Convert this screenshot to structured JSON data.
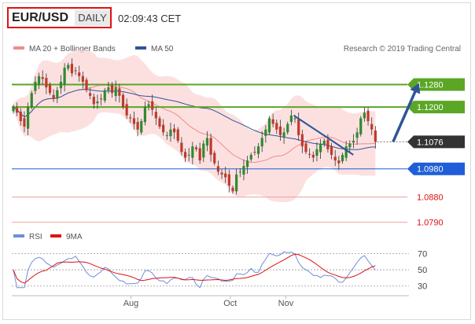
{
  "header": {
    "symbol": "EUR/USD",
    "timeframe": "DAILY",
    "time": "02:09:43 CET"
  },
  "legend_top": [
    {
      "label": "MA 20 + Bollinger Bands",
      "color": "#f08c8c"
    },
    {
      "label": "MA 50",
      "color": "#2f5597"
    }
  ],
  "copyright": "Research © 2019 Trading Central",
  "legend_bottom": [
    {
      "label": "RSI",
      "color": "#6d8fd8"
    },
    {
      "label": "9MA",
      "color": "#e01010"
    }
  ],
  "chart_data": [
    {
      "type": "candlestick",
      "ylim": [
        1.0775,
        1.1385
      ],
      "xlim": [
        0,
        100
      ],
      "x_ticks": [
        {
          "label": "Aug",
          "x": 30
        },
        {
          "label": "Oct",
          "x": 55
        },
        {
          "label": "Nov",
          "x": 69
        }
      ],
      "levels": [
        {
          "label": "1.1280",
          "value": 1.128,
          "color": "#5ba624",
          "kind": "resistance"
        },
        {
          "label": "1.1200",
          "value": 1.12,
          "color": "#5ba624",
          "kind": "resistance"
        },
        {
          "label": "1.1076",
          "value": 1.1076,
          "color": "#333333",
          "kind": "last-price"
        },
        {
          "label": "1.0980",
          "value": 1.098,
          "color": "#1f5ed8",
          "kind": "pivot"
        },
        {
          "label": "1.0880",
          "value": 1.088,
          "color": "#f0a0a0",
          "kind": "support"
        },
        {
          "label": "1.0790",
          "value": 1.079,
          "color": "#f0a0a0",
          "kind": "support"
        }
      ],
      "close": [
        1.12,
        1.118,
        1.115,
        1.113,
        1.12,
        1.125,
        1.129,
        1.131,
        1.13,
        1.127,
        1.125,
        1.123,
        1.126,
        1.129,
        1.134,
        1.135,
        1.132,
        1.133,
        1.131,
        1.129,
        1.126,
        1.124,
        1.121,
        1.122,
        1.123,
        1.126,
        1.127,
        1.125,
        1.127,
        1.124,
        1.12,
        1.117,
        1.116,
        1.114,
        1.112,
        1.115,
        1.12,
        1.121,
        1.119,
        1.116,
        1.113,
        1.111,
        1.11,
        1.112,
        1.111,
        1.108,
        1.104,
        1.102,
        1.103,
        1.106,
        1.105,
        1.101,
        1.107,
        1.109,
        1.103,
        1.1,
        1.097,
        1.096,
        1.095,
        1.092,
        1.09,
        1.096,
        1.097,
        1.099,
        1.101,
        1.103,
        1.104,
        1.106,
        1.109,
        1.112,
        1.116,
        1.114,
        1.112,
        1.11,
        1.111,
        1.114,
        1.117,
        1.116,
        1.11,
        1.106,
        1.104,
        1.103,
        1.102,
        1.105,
        1.107,
        1.108,
        1.105,
        1.103,
        1.101,
        1.1,
        1.103,
        1.106,
        1.107,
        1.108,
        1.111,
        1.116,
        1.118,
        1.115,
        1.112,
        1.1076
      ],
      "projection_arrow": {
        "from": [
          96,
          1.1076
        ],
        "to": [
          102.5,
          1.1285
        ]
      },
      "trend_line": {
        "from": [
          71,
          1.117
        ],
        "to": [
          86,
          1.103
        ]
      }
    },
    {
      "type": "line",
      "series": [
        {
          "name": "RSI",
          "color": "#6d8fd8"
        },
        {
          "name": "9MA",
          "color": "#e01010"
        }
      ],
      "ylim": [
        22,
        82
      ],
      "y_ticks": [
        "70",
        "50",
        "30"
      ],
      "guide_levels": [
        70,
        50,
        30
      ]
    }
  ]
}
